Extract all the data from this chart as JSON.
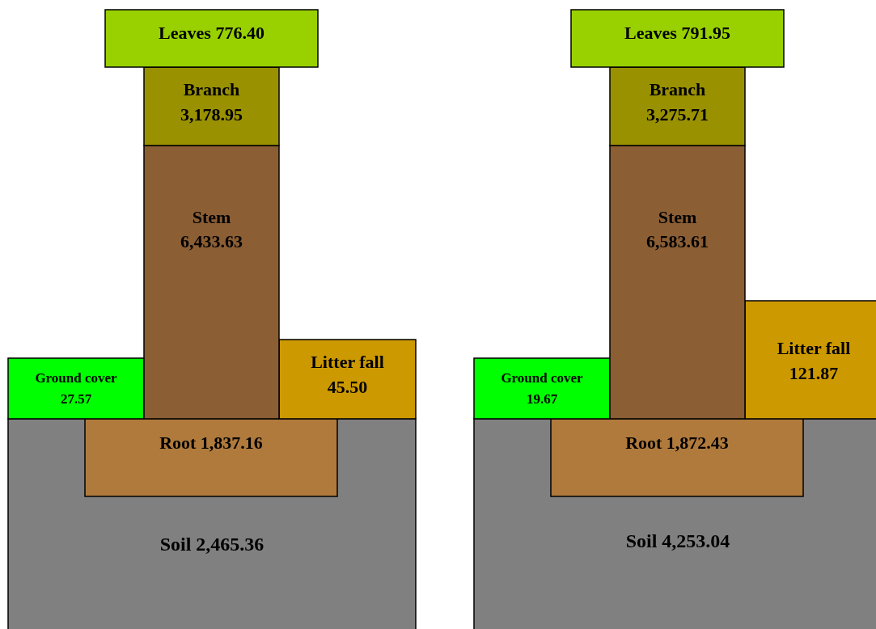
{
  "chart_data": [
    {
      "type": "other",
      "categories": [
        "Leaves",
        "Branch",
        "Stem",
        "Ground cover",
        "Litter fall",
        "Root",
        "Soil"
      ],
      "values": [
        776.4,
        3178.95,
        6433.63,
        27.57,
        45.5,
        1837.16,
        2465.36
      ],
      "value_labels": [
        "776.40",
        "3,178.95",
        "6,433.63",
        "27.57",
        "45.50",
        "1,837.16",
        "2,465.36"
      ],
      "colors": [
        "#99d100",
        "#999100",
        "#8b5e34",
        "#00ff00",
        "#cc9900",
        "#b07a3c",
        "#808080"
      ]
    },
    {
      "type": "other",
      "categories": [
        "Leaves",
        "Branch",
        "Stem",
        "Ground cover",
        "Litter fall",
        "Root",
        "Soil"
      ],
      "values": [
        791.95,
        3275.71,
        6583.61,
        19.67,
        121.87,
        1872.43,
        4253.04
      ],
      "value_labels": [
        "791.95",
        "3,275.71",
        "6,583.61",
        "19.67",
        "121.87",
        "1,872.43",
        "4,253.04"
      ],
      "colors": [
        "#99d100",
        "#999100",
        "#8b5e34",
        "#00ff00",
        "#cc9900",
        "#b07a3c",
        "#808080"
      ]
    }
  ]
}
